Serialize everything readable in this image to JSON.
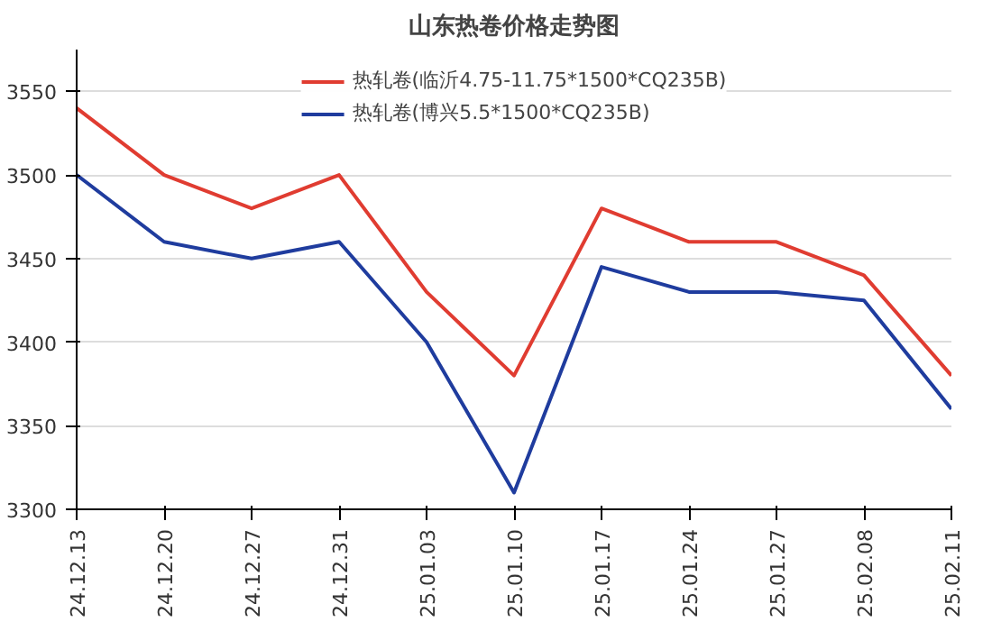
{
  "chart_data": {
    "type": "line",
    "title": "山东热卷价格走势图",
    "categories": [
      "24.12.13",
      "24.12.20",
      "24.12.27",
      "24.12.31",
      "25.01.03",
      "25.01.10",
      "25.01.17",
      "25.01.24",
      "25.01.27",
      "25.02.08",
      "25.02.11"
    ],
    "series": [
      {
        "name": "热轧卷(临沂4.75-11.75*1500*CQ235B)",
        "color": "#e03c31",
        "values": [
          3540,
          3500,
          3480,
          3500,
          3430,
          3380,
          3480,
          3460,
          3460,
          3440,
          3380
        ]
      },
      {
        "name": "热轧卷(博兴5.5*1500*CQ235B)",
        "color": "#1f3c9e",
        "values": [
          3500,
          3460,
          3450,
          3460,
          3400,
          3310,
          3445,
          3430,
          3430,
          3425,
          3360
        ]
      }
    ],
    "ylim": [
      3300,
      3575
    ],
    "yticks": [
      3300,
      3350,
      3400,
      3450,
      3500,
      3550
    ],
    "grid": "y",
    "legend": "top",
    "marker": "none",
    "line_style": "solid"
  }
}
